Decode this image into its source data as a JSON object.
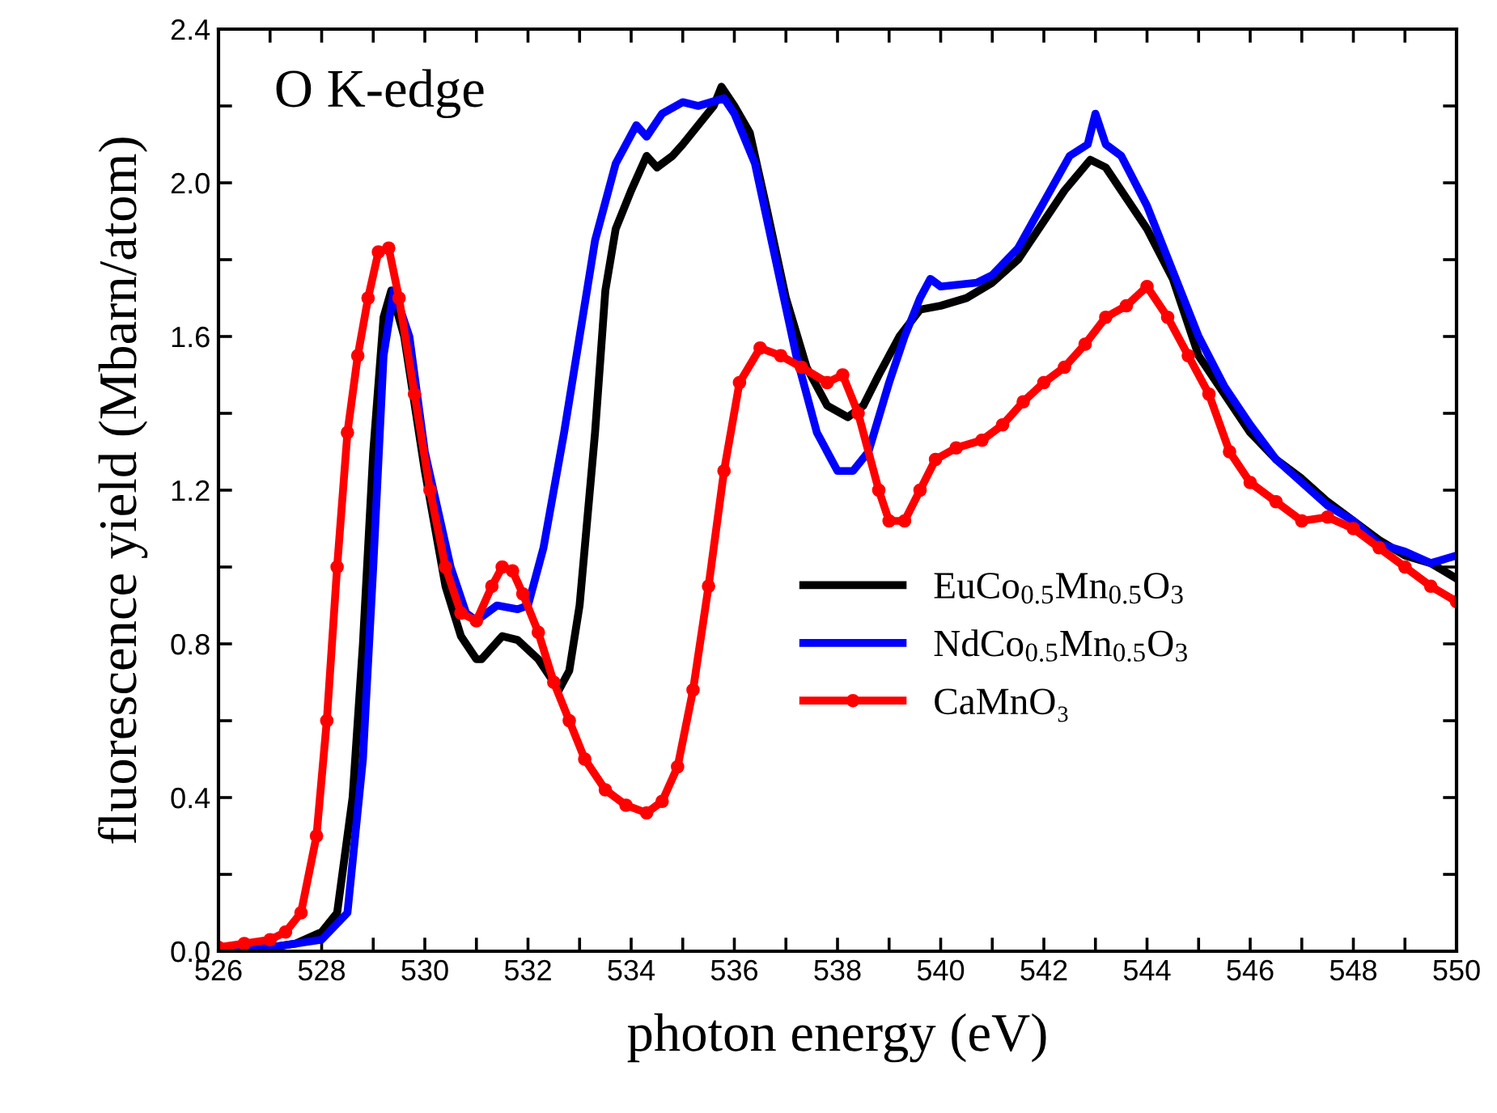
{
  "chart_data": {
    "type": "line",
    "xlabel": "photon energy (eV)",
    "ylabel": "fluorescence yield (Mbarn/atom)",
    "annotations": [
      "O K-edge"
    ],
    "xlim": [
      526,
      550
    ],
    "xticks": [
      526,
      {
        "value": 527,
        "label": null
      },
      528,
      {
        "value": 529,
        "label": null
      },
      530,
      {
        "value": 531,
        "label": null
      },
      532,
      {
        "value": 533,
        "label": null
      },
      534,
      {
        "value": 535,
        "label": null
      },
      536,
      {
        "value": 537,
        "label": null
      },
      538,
      {
        "value": 539,
        "label": null
      },
      540,
      {
        "value": 541,
        "label": null
      },
      542,
      {
        "value": 543,
        "label": null
      },
      544,
      {
        "value": 545,
        "label": null
      },
      546,
      {
        "value": 547,
        "label": null
      },
      548,
      {
        "value": 549,
        "label": null
      },
      550
    ],
    "ylim": [
      0,
      2.4
    ],
    "yticks": [
      {
        "value": 0,
        "label": "0.0"
      },
      {
        "value": 0.2,
        "label": null
      },
      0.4,
      {
        "value": 0.6,
        "label": null
      },
      0.8,
      {
        "value": 1.0,
        "label": null
      },
      1.2,
      {
        "value": 1.4,
        "label": null
      },
      1.6,
      {
        "value": 1.8,
        "label": null
      },
      {
        "value": 2.0,
        "label": "2.0"
      },
      {
        "value": 2.2,
        "label": null
      },
      2.4
    ],
    "grid": false,
    "legend": "right",
    "line_style": "solid",
    "series": [
      {
        "name": "EuCo$_{0.5}$Mn$_{0.5}$O$_{3}$",
        "color": "#000000",
        "marker": "none",
        "x": [
          526,
          527,
          527.5,
          528,
          528.3,
          528.6,
          528.8,
          529.0,
          529.2,
          529.35,
          529.6,
          530.0,
          530.4,
          530.7,
          531.0,
          531.1,
          531.5,
          531.8,
          532.2,
          532.5,
          532.6,
          532.8,
          533.0,
          533.3,
          533.5,
          533.7,
          534.0,
          534.3,
          534.5,
          534.8,
          535.0,
          535.3,
          535.6,
          535.75,
          536.0,
          536.3,
          536.6,
          537.0,
          537.4,
          537.8,
          538.2,
          538.5,
          538.8,
          539.2,
          539.6,
          540.0,
          540.5,
          541.0,
          541.5,
          542.0,
          542.4,
          542.9,
          543.2,
          543.6,
          544.0,
          544.5,
          545.0,
          545.5,
          546.0,
          546.5,
          547.0,
          547.5,
          548.0,
          548.5,
          549.0,
          549.5,
          550
        ],
        "values": [
          0.0,
          0.01,
          0.02,
          0.05,
          0.1,
          0.4,
          0.8,
          1.3,
          1.65,
          1.72,
          1.6,
          1.25,
          0.95,
          0.82,
          0.76,
          0.76,
          0.82,
          0.81,
          0.76,
          0.7,
          0.68,
          0.73,
          0.9,
          1.35,
          1.72,
          1.88,
          1.98,
          2.07,
          2.04,
          2.07,
          2.1,
          2.15,
          2.2,
          2.25,
          2.2,
          2.13,
          1.95,
          1.7,
          1.52,
          1.42,
          1.39,
          1.42,
          1.5,
          1.6,
          1.67,
          1.68,
          1.7,
          1.74,
          1.8,
          1.9,
          1.98,
          2.06,
          2.04,
          1.96,
          1.88,
          1.75,
          1.55,
          1.45,
          1.35,
          1.28,
          1.23,
          1.17,
          1.12,
          1.07,
          1.03,
          1.01,
          0.97
        ]
      },
      {
        "name": "NdCo$_{0.5}$Mn$_{0.5}$O$_{3}$",
        "color": "#0000ff",
        "marker": "none",
        "x": [
          526,
          527,
          528,
          528.5,
          528.8,
          529.0,
          529.2,
          529.4,
          529.7,
          530.0,
          530.5,
          530.8,
          531.0,
          531.4,
          531.8,
          532.0,
          532.3,
          532.7,
          533.0,
          533.3,
          533.7,
          534.1,
          534.3,
          534.6,
          535.0,
          535.3,
          535.8,
          536.0,
          536.4,
          536.8,
          537.2,
          537.6,
          538.0,
          538.3,
          538.6,
          539.0,
          539.3,
          539.6,
          539.8,
          540.0,
          540.7,
          541.0,
          541.5,
          542.0,
          542.5,
          542.85,
          543.0,
          543.2,
          543.5,
          544.0,
          544.5,
          545.0,
          545.5,
          546.0,
          546.5,
          547.0,
          547.5,
          548.0,
          548.5,
          549.0,
          549.5,
          550
        ],
        "values": [
          0.0,
          0.01,
          0.03,
          0.1,
          0.5,
          1.0,
          1.55,
          1.72,
          1.6,
          1.3,
          1.0,
          0.88,
          0.86,
          0.9,
          0.89,
          0.9,
          1.05,
          1.35,
          1.6,
          1.85,
          2.05,
          2.15,
          2.12,
          2.18,
          2.21,
          2.2,
          2.22,
          2.18,
          2.05,
          1.8,
          1.55,
          1.35,
          1.25,
          1.25,
          1.3,
          1.48,
          1.6,
          1.7,
          1.75,
          1.73,
          1.74,
          1.76,
          1.83,
          1.95,
          2.07,
          2.1,
          2.18,
          2.1,
          2.07,
          1.94,
          1.77,
          1.6,
          1.47,
          1.37,
          1.28,
          1.22,
          1.16,
          1.12,
          1.06,
          1.04,
          1.01,
          1.03
        ]
      },
      {
        "name": "CaMnO₃",
        "color": "#ff0000",
        "marker": "circle",
        "x": [
          526,
          526.5,
          527.0,
          527.3,
          527.6,
          527.9,
          528.1,
          528.3,
          528.5,
          528.7,
          528.9,
          529.1,
          529.3,
          529.5,
          529.8,
          530.1,
          530.4,
          530.7,
          531.0,
          531.3,
          531.5,
          531.7,
          531.9,
          532.2,
          532.5,
          532.8,
          533.1,
          533.5,
          533.9,
          534.3,
          534.6,
          534.9,
          535.2,
          535.5,
          535.8,
          536.1,
          536.5,
          536.9,
          537.3,
          537.8,
          538.1,
          538.4,
          538.8,
          539.0,
          539.3,
          539.6,
          539.9,
          540.3,
          540.8,
          541.2,
          541.6,
          542.0,
          542.4,
          542.8,
          543.2,
          543.6,
          544.0,
          544.4,
          544.8,
          545.2,
          545.6,
          546.0,
          546.5,
          547.0,
          547.5,
          548.0,
          548.5,
          549.0,
          549.5,
          550
        ],
        "values": [
          0.01,
          0.02,
          0.03,
          0.05,
          0.1,
          0.3,
          0.6,
          1.0,
          1.35,
          1.55,
          1.7,
          1.82,
          1.83,
          1.7,
          1.45,
          1.2,
          1.0,
          0.88,
          0.86,
          0.95,
          1.0,
          0.99,
          0.93,
          0.83,
          0.7,
          0.6,
          0.5,
          0.42,
          0.38,
          0.36,
          0.39,
          0.48,
          0.68,
          0.95,
          1.25,
          1.48,
          1.57,
          1.55,
          1.52,
          1.48,
          1.5,
          1.4,
          1.2,
          1.12,
          1.12,
          1.2,
          1.28,
          1.31,
          1.33,
          1.37,
          1.43,
          1.48,
          1.52,
          1.58,
          1.65,
          1.68,
          1.73,
          1.65,
          1.55,
          1.45,
          1.3,
          1.22,
          1.17,
          1.12,
          1.13,
          1.1,
          1.05,
          1.0,
          0.95,
          0.91
        ]
      }
    ]
  }
}
